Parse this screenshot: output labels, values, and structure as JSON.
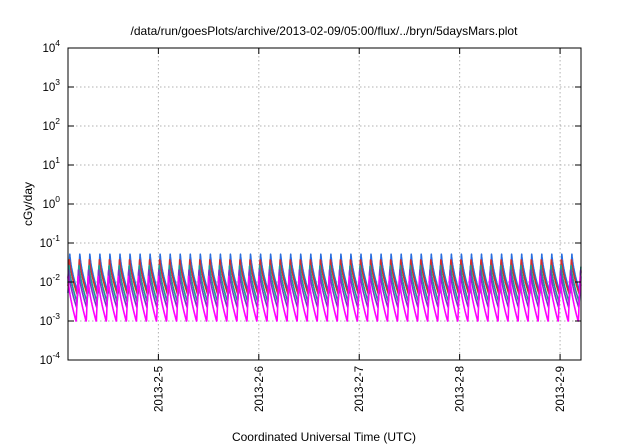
{
  "chart_data": {
    "type": "line",
    "title": "/data/run/goesPlots/archive/2013-02-09/05:00/flux/../bryn/5daysMars.plot",
    "xlabel": "Coordinated Universal Time (UTC)",
    "ylabel": "cGy/day",
    "yscale": "log",
    "ylim": [
      0.0001,
      10000
    ],
    "xlim": [
      "2013-02-04 02:24",
      "2013-02-09 05:00"
    ],
    "grid": true,
    "legend": "none",
    "y_ticks": [
      {
        "mantissa": "10",
        "exp": "-4"
      },
      {
        "mantissa": "10",
        "exp": "-3"
      },
      {
        "mantissa": "10",
        "exp": "-2"
      },
      {
        "mantissa": "10",
        "exp": "-1"
      },
      {
        "mantissa": "10",
        "exp": "0"
      },
      {
        "mantissa": "10",
        "exp": "1"
      },
      {
        "mantissa": "10",
        "exp": "2"
      },
      {
        "mantissa": "10",
        "exp": "3"
      },
      {
        "mantissa": "10",
        "exp": "4"
      }
    ],
    "x_ticks": [
      {
        "label": "2013-2-5",
        "date": "2013-02-05 00:00"
      },
      {
        "label": "2013-2-6",
        "date": "2013-02-06 00:00"
      },
      {
        "label": "2013-2-7",
        "date": "2013-02-07 00:00"
      },
      {
        "label": "2013-2-8",
        "date": "2013-02-08 00:00"
      },
      {
        "label": "2013-2-9",
        "date": "2013-02-09 00:00"
      }
    ],
    "cycles_per_day": 10,
    "series": [
      {
        "color": "#2a6fe0",
        "min": 0.0052,
        "max": 0.055
      },
      {
        "color": "#d12f2f",
        "min": 0.0045,
        "max": 0.042
      },
      {
        "color": "#1f9e8f",
        "min": 0.003,
        "max": 0.03
      },
      {
        "color": "#7b33c9",
        "min": 0.0022,
        "max": 0.022
      },
      {
        "color": "#ff00ff",
        "min": 0.00095,
        "max": 0.014
      }
    ]
  }
}
